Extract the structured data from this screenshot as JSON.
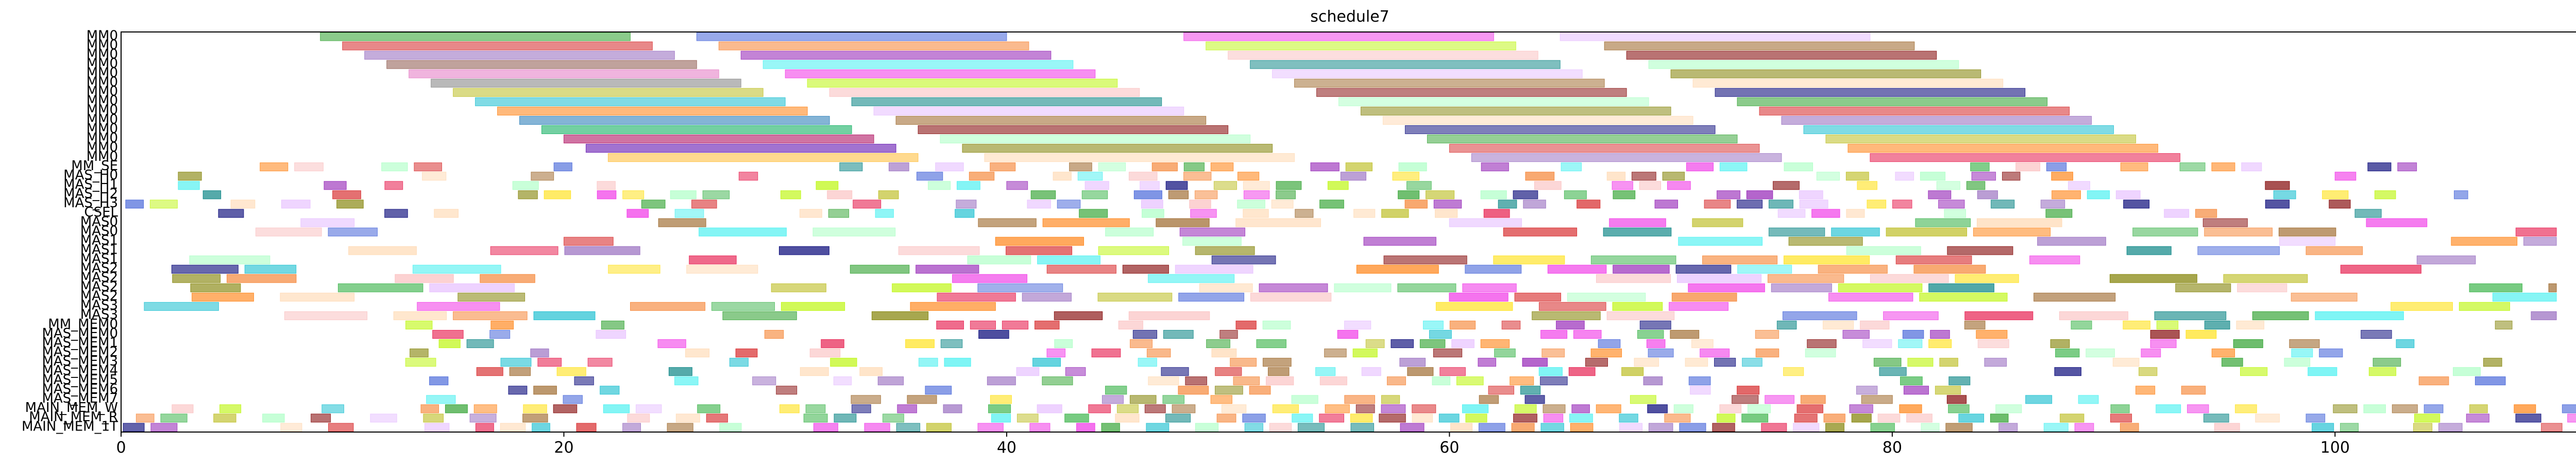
{
  "chart_data": {
    "type": "gantt",
    "title": "schedule7",
    "xlabel": "",
    "ylabel": "",
    "xlim": [
      0,
      111
    ],
    "x_ticks": [
      0,
      20,
      40,
      60,
      80,
      100
    ],
    "grid": false,
    "legend": "none",
    "rows": [
      "MM0",
      "MM0",
      "MM0",
      "MM0",
      "MM0",
      "MM0",
      "MM0",
      "MM0",
      "MM0",
      "MM0",
      "MM0",
      "MM0",
      "MM0",
      "MM0",
      "MM_SE",
      "MAS_H0",
      "MAS_H1",
      "MAS_H2",
      "MAS_H3",
      "CSEL",
      "MAS0",
      "MAS0",
      "MAS1",
      "MAS1",
      "MAS1",
      "MAS2",
      "MAS2",
      "MAS2",
      "MAS2",
      "MAS3",
      "MAS3",
      "MM_MEM0",
      "MAS_MEM0",
      "MAS_MEM1",
      "MAS_MEM2",
      "MAS_MEM3",
      "MAS_MEM4",
      "MAS_MEM5",
      "MAS_MEM6",
      "MAS_MEM7",
      "MAIN_MEM_W",
      "MAIN_MEM_R",
      "MAIN_MEM_1T"
    ],
    "mm_series": [
      {
        "start": 9,
        "end": 23,
        "start2": 26,
        "end2": 40,
        "start3": 48,
        "end3": 62,
        "start4": 65,
        "end4": 79
      },
      {
        "start": 10,
        "end": 24,
        "start2": 27,
        "end2": 41,
        "start3": 49,
        "end3": 63,
        "start4": 67,
        "end4": 81
      },
      {
        "start": 11,
        "end": 25,
        "start2": 28,
        "end2": 42,
        "start3": 50,
        "end3": 64,
        "start4": 68,
        "end4": 82
      },
      {
        "start": 12,
        "end": 26,
        "start2": 29,
        "end2": 43,
        "start3": 51,
        "end3": 65,
        "start4": 69,
        "end4": 83
      },
      {
        "start": 13,
        "end": 27,
        "start2": 30,
        "end2": 44,
        "start3": 52,
        "end3": 66,
        "start4": 70,
        "end4": 84
      },
      {
        "start": 14,
        "end": 28,
        "start2": 31,
        "end2": 45,
        "start3": 53,
        "end3": 67,
        "start4": 71,
        "end4": 85
      },
      {
        "start": 15,
        "end": 29,
        "start2": 32,
        "end2": 46,
        "start3": 54,
        "end3": 68,
        "start4": 72,
        "end4": 86
      },
      {
        "start": 16,
        "end": 30,
        "start2": 33,
        "end2": 47,
        "start3": 55,
        "end3": 69,
        "start4": 73,
        "end4": 87
      },
      {
        "start": 17,
        "end": 31,
        "start2": 34,
        "end2": 48,
        "start3": 56,
        "end3": 70,
        "start4": 74,
        "end4": 88
      },
      {
        "start": 18,
        "end": 32,
        "start2": 35,
        "end2": 49,
        "start3": 57,
        "end3": 71,
        "start4": 75,
        "end4": 89
      },
      {
        "start": 19,
        "end": 33,
        "start2": 36,
        "end2": 50,
        "start3": 58,
        "end3": 72,
        "start4": 76,
        "end4": 90
      },
      {
        "start": 20,
        "end": 34,
        "start2": 37,
        "end2": 51,
        "start3": 59,
        "end3": 73,
        "start4": 77,
        "end4": 91
      },
      {
        "start": 21,
        "end": 35,
        "start2": 38,
        "end2": 52,
        "start3": 60,
        "end3": 74,
        "start4": 78,
        "end4": 92
      },
      {
        "start": 22,
        "end": 36,
        "start2": 39,
        "end2": 53,
        "start3": 61,
        "end3": 75,
        "start4": 79,
        "end4": 93
      }
    ],
    "mm_colors": [
      "#2ca02c",
      "#d62728",
      "#9467bd",
      "#8c564b",
      "#e377c2",
      "#7f7f7f",
      "#bcbd22",
      "#17becf",
      "#ff7f0e",
      "#1f77b4",
      "#00aa55",
      "#aa0055",
      "#5500aa",
      "#ffbb33"
    ],
    "palette": [
      "#e6194b",
      "#3cb44b",
      "#ffe119",
      "#4363d8",
      "#f58231",
      "#911eb4",
      "#46f0f0",
      "#f032e6",
      "#bcf60c",
      "#fabebe",
      "#008080",
      "#e6beff",
      "#9a6324",
      "#800000",
      "#aaffc3",
      "#808000",
      "#ffd8b1",
      "#000075",
      "#2ca02c",
      "#d62728",
      "#9467bd",
      "#17becf",
      "#bcbd22",
      "#ff7f0e"
    ]
  }
}
